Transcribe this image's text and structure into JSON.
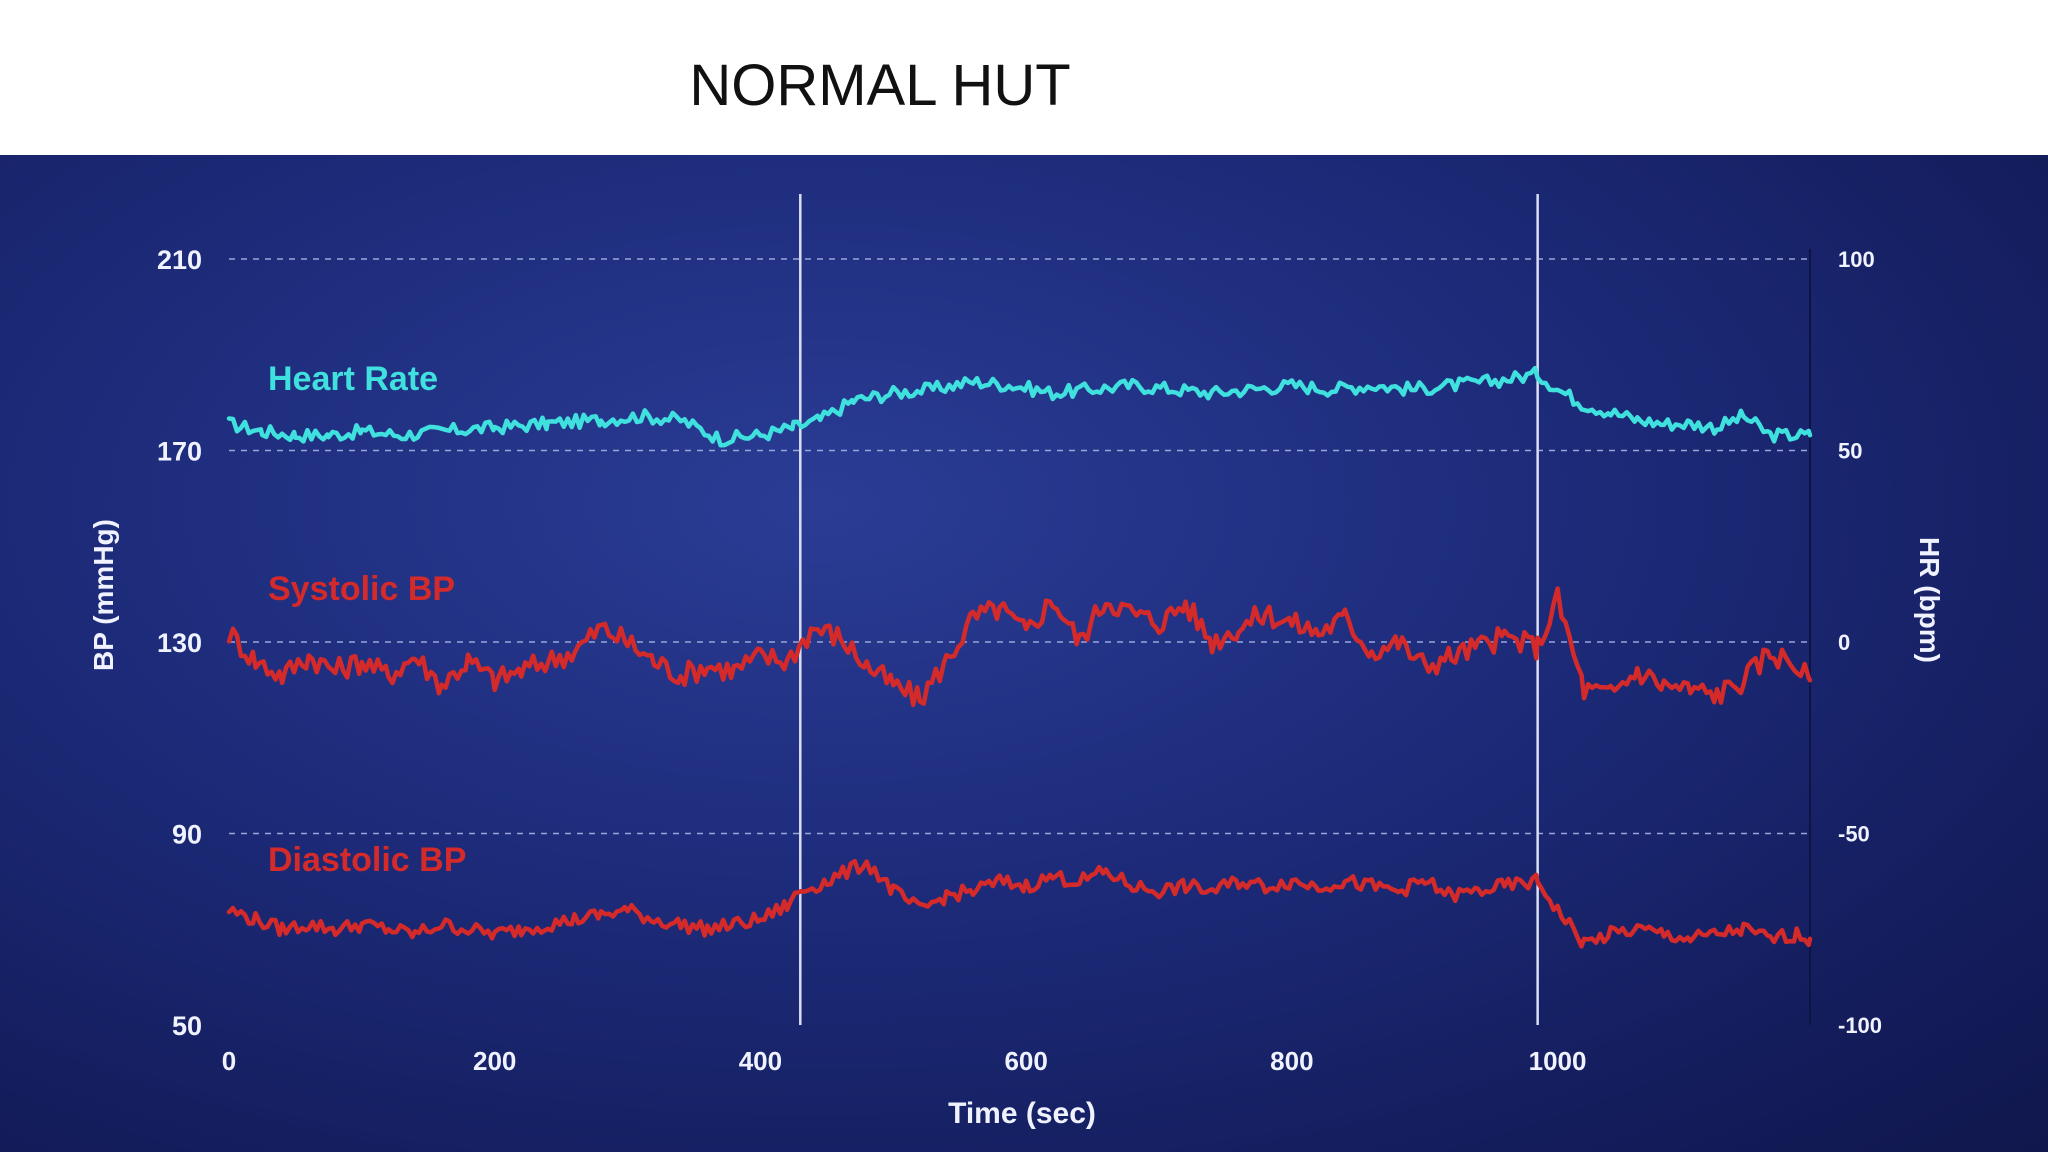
{
  "slide": {
    "title": "NORMAL HUT"
  },
  "chart_data": {
    "type": "line",
    "title": "",
    "xlabel": "Time (sec)",
    "ylabel_left": "BP (mmHg)",
    "ylabel_right": "HR (bpm)",
    "xlim": [
      0,
      1190
    ],
    "ylim_left": [
      50,
      210
    ],
    "ylim_right": [
      -100,
      100
    ],
    "x_ticks": [
      "0",
      "200",
      "400",
      "600",
      "800",
      "1000"
    ],
    "y_ticks_left": [
      "50",
      "90",
      "130",
      "170",
      "210"
    ],
    "y_ticks_right": [
      "-100",
      "-50",
      "0",
      "50",
      "100"
    ],
    "gridlines_left_values": [
      90,
      130,
      170,
      210
    ],
    "vertical_markers_sec": [
      430,
      985
    ],
    "colors": {
      "background": "#1c2a78",
      "heart_rate": "#3fe0de",
      "bp": "#d42a2a",
      "axis_text": "#f0f2ff",
      "grid": "#9aa6d8"
    },
    "series": [
      {
        "name": "Heart Rate",
        "axis": "right",
        "color": "#3fe0de",
        "x": [
          0,
          25,
          50,
          75,
          100,
          130,
          160,
          200,
          240,
          280,
          310,
          340,
          370,
          400,
          425,
          445,
          470,
          500,
          530,
          560,
          590,
          620,
          650,
          680,
          710,
          740,
          770,
          800,
          830,
          860,
          890,
          920,
          950,
          985,
          1000,
          1020,
          1040,
          1060,
          1080,
          1100,
          1120,
          1140,
          1160,
          1180,
          1190
        ],
        "values": [
          57,
          55,
          54,
          54,
          55,
          54,
          55,
          56,
          57,
          58,
          59,
          58,
          53,
          54,
          56,
          58,
          63,
          65,
          66,
          68,
          67,
          65,
          66,
          67,
          66,
          65,
          66,
          67,
          66,
          67,
          66,
          67,
          68,
          70,
          66,
          62,
          60,
          58,
          57,
          57,
          56,
          59,
          54,
          54,
          54
        ]
      },
      {
        "name": "Systolic BP",
        "axis": "left",
        "color": "#d42a2a",
        "x": [
          0,
          20,
          40,
          60,
          80,
          100,
          120,
          140,
          160,
          180,
          200,
          220,
          240,
          260,
          280,
          300,
          320,
          340,
          360,
          380,
          400,
          420,
          440,
          460,
          480,
          500,
          520,
          540,
          560,
          580,
          600,
          620,
          640,
          660,
          680,
          700,
          720,
          740,
          760,
          780,
          800,
          820,
          840,
          860,
          880,
          900,
          920,
          940,
          960,
          985,
          1000,
          1020,
          1040,
          1060,
          1080,
          1100,
          1120,
          1140,
          1160,
          1180,
          1190
        ],
        "values": [
          132,
          126,
          123,
          127,
          124,
          126,
          123,
          127,
          121,
          126,
          122,
          124,
          126,
          128,
          133,
          130,
          126,
          123,
          125,
          124,
          127,
          126,
          133,
          131,
          125,
          121,
          118,
          126,
          135,
          137,
          132,
          139,
          130,
          139,
          136,
          134,
          138,
          130,
          133,
          136,
          134,
          132,
          135,
          128,
          130,
          125,
          127,
          129,
          131,
          129,
          139,
          120,
          119,
          124,
          121,
          120,
          119,
          122,
          128,
          125,
          122
        ]
      },
      {
        "name": "Diastolic BP",
        "axis": "left",
        "color": "#d42a2a",
        "x": [
          0,
          20,
          40,
          60,
          80,
          100,
          120,
          140,
          160,
          180,
          200,
          220,
          240,
          260,
          280,
          300,
          320,
          340,
          360,
          380,
          400,
          420,
          430,
          450,
          480,
          500,
          520,
          540,
          560,
          580,
          600,
          620,
          640,
          660,
          680,
          700,
          720,
          740,
          760,
          780,
          800,
          820,
          840,
          860,
          880,
          900,
          920,
          940,
          960,
          985,
          1000,
          1020,
          1040,
          1060,
          1080,
          1100,
          1120,
          1140,
          1160,
          1180,
          1190
        ],
        "values": [
          74,
          72,
          70,
          71,
          70,
          71,
          70,
          69,
          71,
          70,
          69,
          70,
          71,
          72,
          73,
          74,
          72,
          71,
          70,
          71,
          72,
          75,
          78,
          80,
          84,
          78,
          74,
          77,
          78,
          80,
          79,
          81,
          80,
          82,
          79,
          78,
          79,
          78,
          80,
          79,
          80,
          79,
          80,
          79,
          78,
          80,
          77,
          78,
          79,
          80,
          74,
          67,
          69,
          70,
          69,
          68,
          69,
          70,
          68,
          69,
          68
        ]
      }
    ]
  }
}
